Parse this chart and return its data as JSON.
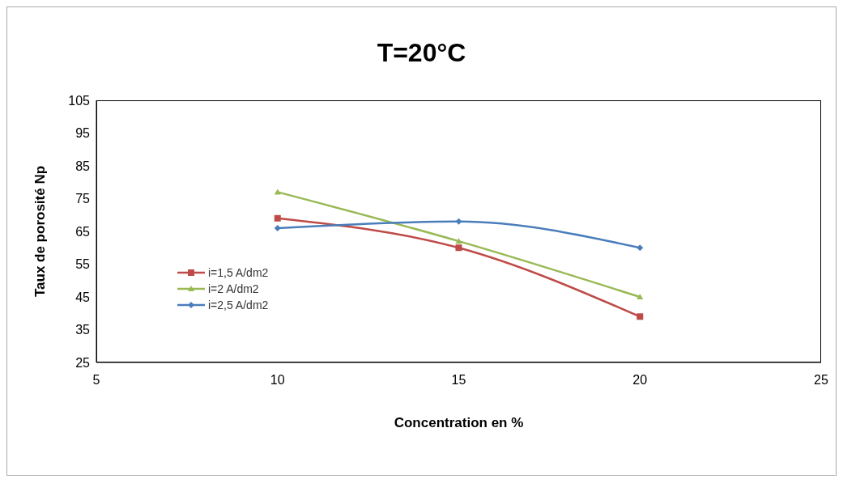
{
  "chart_data": {
    "type": "line",
    "title": "T=20°C",
    "xlabel": "Concentration en %",
    "ylabel": "Taux de porosité Np",
    "x": [
      10,
      15,
      20
    ],
    "series": [
      {
        "name": "i=1,5 A/dm2",
        "color": "#be4b48",
        "marker": "square",
        "values": [
          69,
          60,
          39
        ]
      },
      {
        "name": "i=2 A/dm2",
        "color": "#98b954",
        "marker": "triangle",
        "values": [
          77,
          62,
          45
        ]
      },
      {
        "name": "i=2,5 A/dm2",
        "color": "#4a7ebb",
        "marker": "diamond",
        "values": [
          66,
          68,
          60
        ]
      }
    ],
    "xlim": [
      5,
      25
    ],
    "xticks": [
      5,
      10,
      15,
      20,
      25
    ],
    "ylim": [
      25,
      105
    ],
    "yticks": [
      25,
      35,
      45,
      55,
      65,
      75,
      85,
      95,
      105
    ],
    "legend": "left",
    "line_style": "solid"
  }
}
